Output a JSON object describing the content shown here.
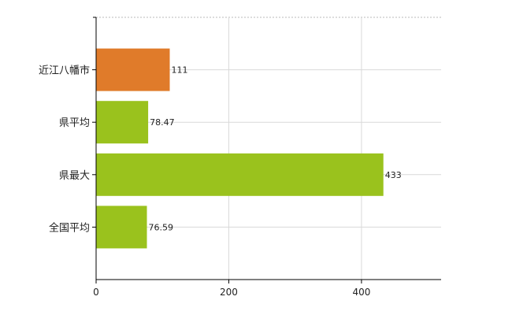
{
  "chart_data": {
    "type": "bar",
    "orientation": "horizontal",
    "categories": [
      "近江八幡市",
      "県平均",
      "県最大",
      "全国平均"
    ],
    "values": [
      111,
      78.47,
      433,
      76.59
    ],
    "value_labels": [
      "111",
      "78.47",
      "433",
      "76.59"
    ],
    "bar_colors": [
      "#e07b2a",
      "#9ac21d",
      "#9ac21d",
      "#9ac21d"
    ],
    "xlim": [
      0,
      520
    ],
    "xticks": [
      0,
      200,
      400
    ],
    "xtick_labels": [
      "0",
      "200",
      "400"
    ],
    "grid": true
  }
}
